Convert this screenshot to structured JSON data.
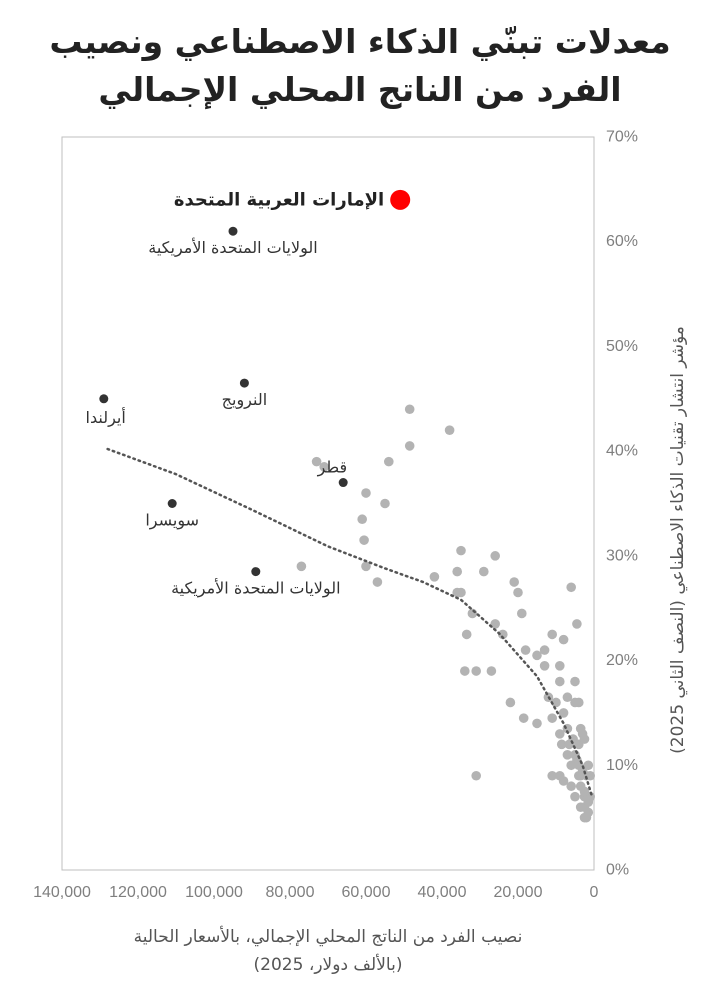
{
  "chart_data": {
    "type": "scatter",
    "title_lines": [
      "معدلات تبنّي الذكاء الاصطناعي ونصيب",
      "الفرد من الناتج المحلي الإجمالي"
    ],
    "xlabel_lines": [
      "نصيب الفرد من الناتج المحلي الإجمالي، بالأسعار الحالية",
      "(بالألف دولار، 2025)"
    ],
    "ylabel": "مؤشر انتشار تقنيات الذكاء الاصطناعي (النصف الثاني 2025)",
    "xlim": [
      0,
      140000
    ],
    "x_reversed": true,
    "ylim": [
      0,
      70
    ],
    "x_ticks": [
      140000,
      120000,
      100000,
      80000,
      60000,
      40000,
      20000,
      0
    ],
    "x_tick_labels": [
      "140,000",
      "120,000",
      "100,000",
      "80,000",
      "60,000",
      "40,000",
      "20,000",
      "0"
    ],
    "y_ticks": [
      0,
      10,
      20,
      30,
      40,
      50,
      60,
      70
    ],
    "y_tick_labels": [
      "0%",
      "10%",
      "20%",
      "30%",
      "40%",
      "50%",
      "60%",
      "70%"
    ],
    "y_axis_position": "right",
    "grid": false,
    "colors": {
      "highlight": "#ff0000",
      "labeled": "#333333",
      "others": "#b3b3b3",
      "trend": "#555555"
    },
    "highlight": {
      "label": "الإمارات العربية المتحدة",
      "x": 51000,
      "y": 64
    },
    "labeled_points": [
      {
        "label": "الولايات المتحدة الأمريكية",
        "x": 95000,
        "y": 61,
        "label_side": "below"
      },
      {
        "label": "النرويج",
        "x": 92000,
        "y": 46.5,
        "label_side": "below"
      },
      {
        "label": "أيرلندا",
        "x": 129000,
        "y": 45,
        "label_side": "below-left"
      },
      {
        "label": "قطر",
        "x": 66000,
        "y": 37,
        "label_side": "above-left"
      },
      {
        "label": "سويسرا",
        "x": 111000,
        "y": 35,
        "label_side": "below"
      },
      {
        "label": "الولايات المتحدة الأمريكية",
        "x": 89000,
        "y": 28.5,
        "label_side": "below"
      }
    ],
    "other_points": {
      "x": [
        48500,
        38000,
        48500,
        54000,
        73000,
        71000,
        60000,
        55000,
        61000,
        60500,
        77000,
        57000,
        60000,
        35000,
        42000,
        26000,
        36000,
        35000,
        36000,
        29000,
        32000,
        21000,
        20000,
        19000,
        26000,
        33500,
        24000,
        34000,
        31000,
        27000,
        18000,
        15000,
        13000,
        11000,
        8000,
        6000,
        9000,
        4500,
        5000,
        4000,
        13000,
        12000,
        9000,
        10000,
        7000,
        5000,
        22000,
        18500,
        15000,
        11000,
        8000,
        7000,
        5500,
        4000,
        3500,
        3000,
        2500,
        9000,
        8500,
        6500,
        7000,
        5000,
        4500,
        6000,
        4000,
        3000,
        2000,
        1500,
        8000,
        6000,
        5000,
        3500,
        2500,
        1500,
        1000,
        2500,
        1500,
        3500,
        1500,
        2000,
        2500,
        1000,
        31000,
        4000,
        9000,
        11000,
        3500,
        2500
      ],
      "y": [
        44,
        42,
        40.5,
        39,
        39,
        38.5,
        36,
        35,
        33.5,
        31.5,
        29,
        27.5,
        29,
        30.5,
        28,
        30,
        28.5,
        26.5,
        26.5,
        28.5,
        24.5,
        27.5,
        26.5,
        24.5,
        23.5,
        22.5,
        22.5,
        19,
        19,
        19,
        21,
        20.5,
        21,
        22.5,
        22,
        27,
        19.5,
        23.5,
        18,
        16,
        19.5,
        16.5,
        18,
        16,
        16.5,
        16,
        16,
        14.5,
        14,
        14.5,
        15,
        13.5,
        12.5,
        12,
        13.5,
        13,
        12.5,
        13,
        12,
        12,
        11,
        11,
        10.5,
        10,
        10,
        9.5,
        9,
        10,
        8.5,
        8,
        7,
        8,
        7,
        6.5,
        7,
        6,
        6.5,
        6,
        5.5,
        5,
        7.5,
        9,
        9,
        9,
        9,
        9,
        9,
        5
      ]
    },
    "trendline": {
      "style": "dotted",
      "points": [
        [
          128000,
          40.2
        ],
        [
          110000,
          37.8
        ],
        [
          90000,
          34.4
        ],
        [
          70000,
          30.9
        ],
        [
          55000,
          28.8
        ],
        [
          45000,
          27.5
        ],
        [
          35000,
          25.8
        ],
        [
          25000,
          22.6
        ],
        [
          15000,
          18.5
        ],
        [
          8000,
          14.0
        ],
        [
          3000,
          10.0
        ],
        [
          500,
          7.0
        ]
      ]
    }
  }
}
